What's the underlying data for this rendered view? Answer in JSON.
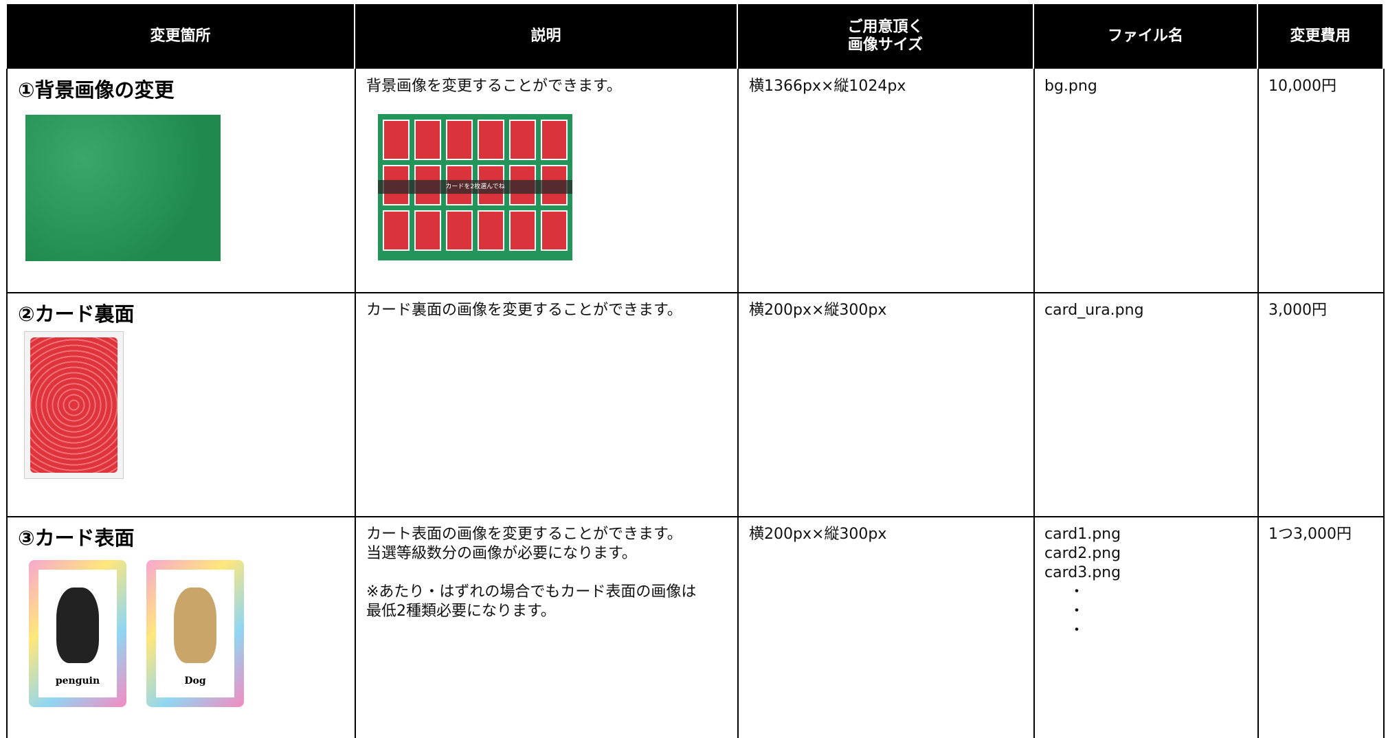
{
  "table": {
    "headers": [
      [
        "変更箇所"
      ],
      [
        "説明"
      ],
      [
        "ご用意頂く",
        "画像サイズ"
      ],
      [
        "ファイル名"
      ],
      [
        "変更費用"
      ]
    ],
    "rows": [
      {
        "title": "①背景画像の変更",
        "description": [
          [
            "背景画像を変更することができます。"
          ]
        ],
        "size": "横1366px×縦1024px",
        "files": [
          "bg.png"
        ],
        "price": "10,000円",
        "image_caption": "カードを2枚選んでね"
      },
      {
        "title": "②カード裏面",
        "description": [
          [
            "カード裏面の画像を変更することができます。"
          ]
        ],
        "size": "横200px×縦300px",
        "files": [
          "card_ura.png"
        ],
        "price": "3,000円"
      },
      {
        "title": "③カード表面",
        "description": [
          [
            "カート表面の画像を変更することができます。",
            "当選等級数分の画像が必要になります。"
          ],
          [
            "※あたり・はずれの場合でもカード表面の画像は",
            "最低2種類必要になります。"
          ]
        ],
        "size": "横200px×縦300px",
        "files": [
          "card1.png",
          "card2.png",
          "card3.png",
          "・",
          "・",
          "・"
        ],
        "price": "1つ3,000円",
        "card_labels": [
          "penguin",
          "Dog"
        ]
      }
    ]
  }
}
